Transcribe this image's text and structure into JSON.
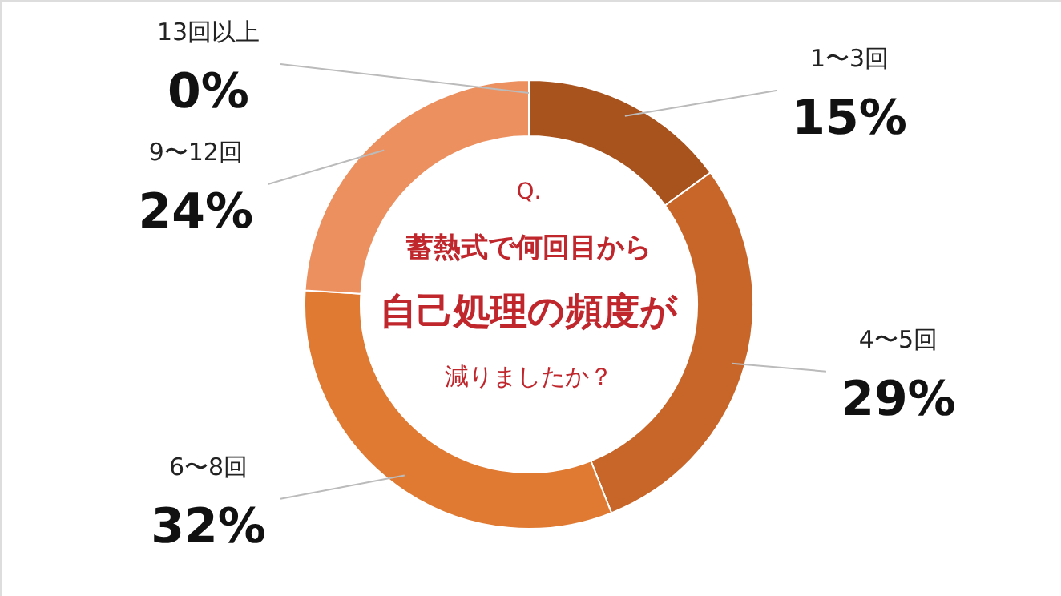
{
  "chart_data": {
    "type": "donut",
    "categories": [
      "1〜3回",
      "4〜5回",
      "6〜8回",
      "9〜12回",
      "13回以上"
    ],
    "values": [
      15,
      29,
      32,
      24,
      0
    ],
    "colors": [
      "#a8521e",
      "#c8662a",
      "#e07a32",
      "#ec9060",
      "#f09a70"
    ],
    "value_labels": [
      "15%",
      "29%",
      "32%",
      "24%",
      "0%"
    ],
    "annotations": [
      "Q.",
      "蓄熱式で何回目から",
      "自己処理の頻度が",
      "減りましたか？"
    ]
  }
}
